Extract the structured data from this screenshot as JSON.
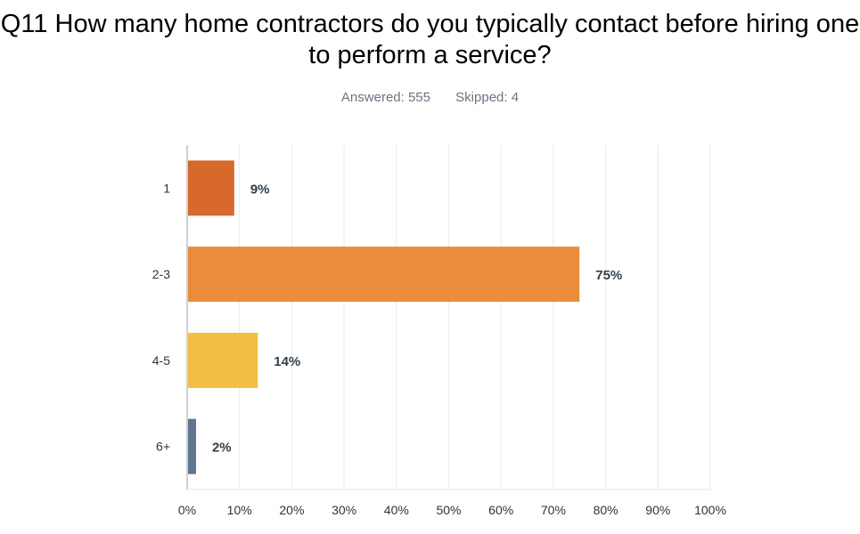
{
  "title": "Q11 How many home contractors do you typically contact before hiring one to perform a service?",
  "answered": "Answered: 555",
  "skipped": "Skipped: 4",
  "chart_data": {
    "type": "bar",
    "orientation": "horizontal",
    "categories": [
      "1",
      "2-3",
      "4-5",
      "6+"
    ],
    "values": [
      9.0,
      75.0,
      13.5,
      1.7
    ],
    "data_labels": [
      "9%",
      "75%",
      "14%",
      "2%"
    ],
    "colors": [
      "#d6692b",
      "#e98d3c",
      "#f1bf43",
      "#5f7590"
    ],
    "xlim": [
      0,
      100
    ],
    "xticks": [
      "0%",
      "10%",
      "20%",
      "30%",
      "40%",
      "50%",
      "60%",
      "70%",
      "80%",
      "90%",
      "100%"
    ],
    "grid": true,
    "xlabel": "",
    "ylabel": ""
  }
}
